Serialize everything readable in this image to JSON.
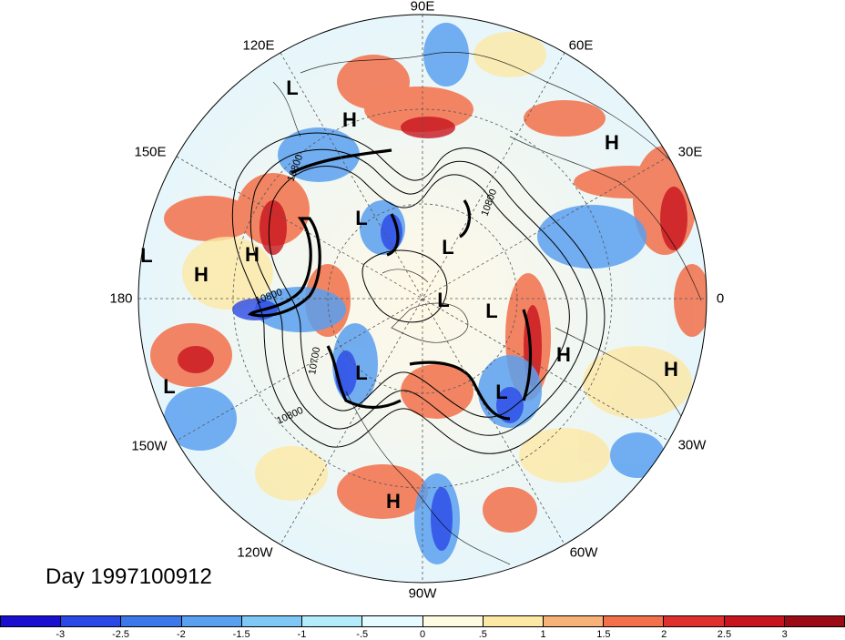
{
  "title": "Day 1997100912",
  "longitude_labels": [
    "90E",
    "60E",
    "30E",
    "0",
    "30W",
    "60W",
    "90W",
    "120W",
    "150W",
    "180",
    "150E",
    "120E"
  ],
  "pressure_centers": [
    {
      "label": "L"
    },
    {
      "label": "H"
    },
    {
      "label": "H"
    },
    {
      "label": "L"
    },
    {
      "label": "H"
    },
    {
      "label": "L"
    },
    {
      "label": "H"
    },
    {
      "label": "L"
    },
    {
      "label": "L"
    },
    {
      "label": "L"
    },
    {
      "label": "L"
    },
    {
      "label": "L"
    },
    {
      "label": "H"
    },
    {
      "label": "H"
    },
    {
      "label": "L"
    },
    {
      "label": "H"
    }
  ],
  "contour_labels": [
    "10800",
    "10800",
    "10800",
    "10700",
    "10800"
  ],
  "colorbar": {
    "tick_labels": [
      "-3",
      "-2.5",
      "-2",
      "-1.5",
      "-1",
      "-.5",
      "0",
      ".5",
      "1",
      "1.5",
      "2",
      "2.5",
      "3"
    ],
    "colors": [
      "#1a0fd0",
      "#2a48e6",
      "#3c78ea",
      "#5aa0f0",
      "#7fc8f6",
      "#b3ecfa",
      "#e6fbff",
      "#fffbe0",
      "#fde8a4",
      "#f7b27a",
      "#f2704a",
      "#e0302e",
      "#c8141e",
      "#9c0a14"
    ]
  }
}
